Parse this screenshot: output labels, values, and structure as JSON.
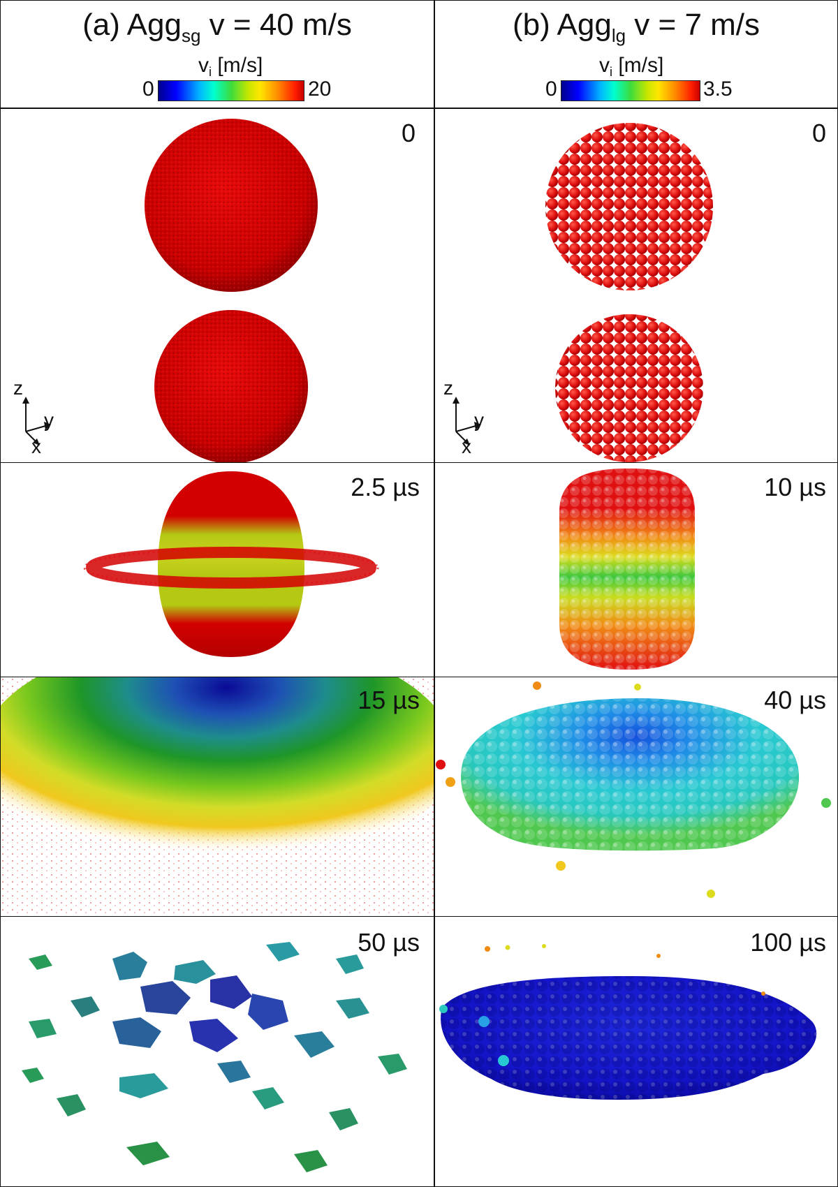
{
  "columns": [
    {
      "title_prefix": "(a) Agg",
      "title_sub": "sg",
      "title_suffix": " v = 40 m/s",
      "colorbar": {
        "label_main": "v",
        "label_sub": "i",
        "label_unit": " [m/s]",
        "min": "0",
        "max": "20"
      },
      "frames": [
        "0",
        "2.5 µs",
        "15 µs",
        "50 µs"
      ]
    },
    {
      "title_prefix": "(b) Agg",
      "title_sub": "lg",
      "title_suffix": " v = 7 m/s",
      "colorbar": {
        "label_main": "v",
        "label_sub": "i",
        "label_unit": " [m/s]",
        "min": "0",
        "max": "3.5"
      },
      "frames": [
        "0",
        "10 µs",
        "40 µs",
        "100 µs"
      ]
    }
  ],
  "axes": {
    "z": "z",
    "y": "y",
    "x": "x"
  },
  "colors": {
    "red": "#e00000",
    "yellow": "#c8e614",
    "green": "#1ea02a",
    "cyan": "#28c8d2",
    "blue": "#1414dc",
    "teal": "#148c8c"
  }
}
